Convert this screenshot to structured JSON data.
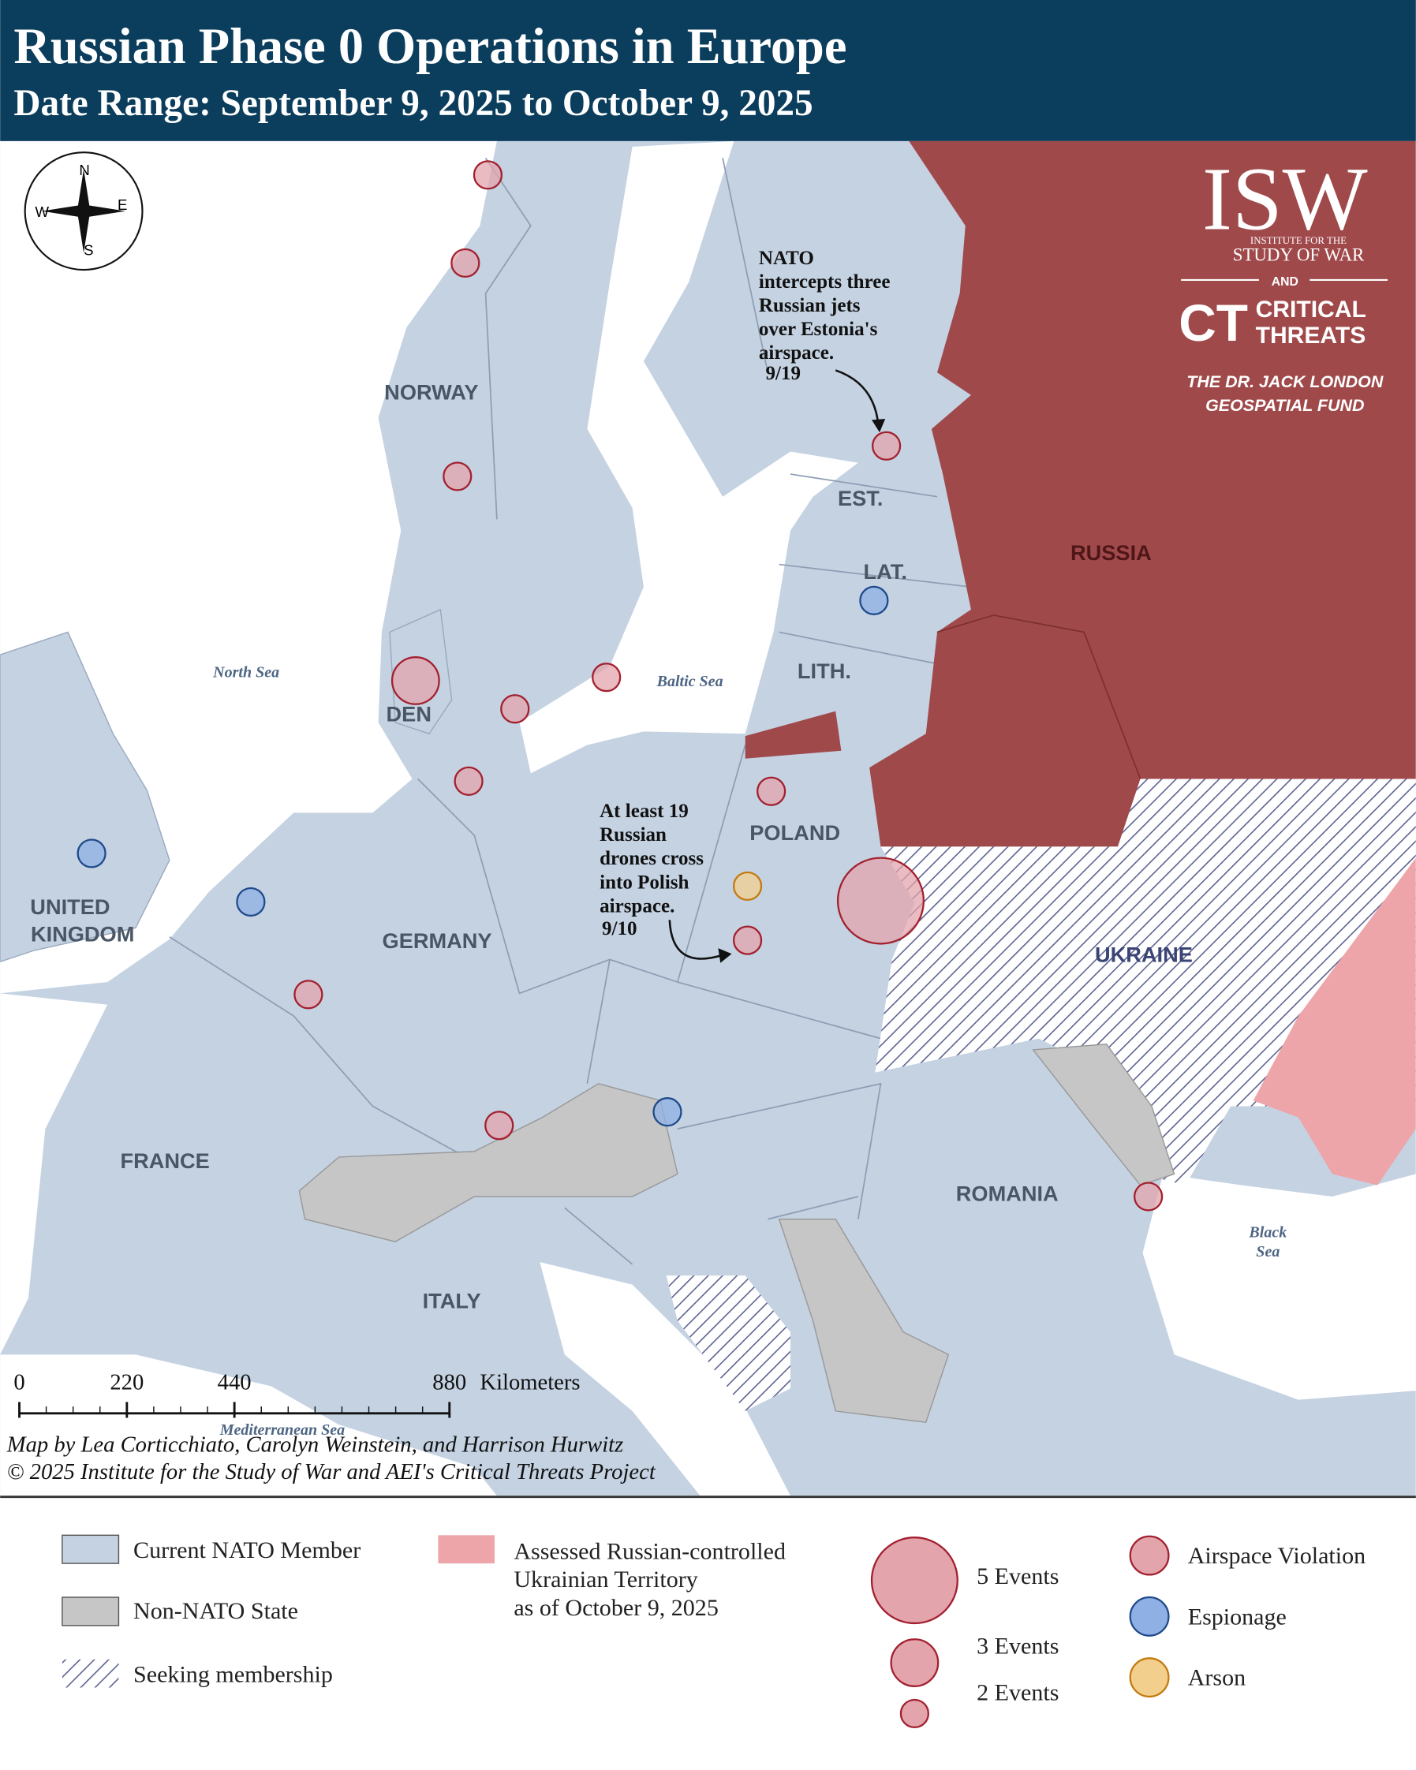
{
  "header": {
    "title": "Russian Phase 0 Operations in Europe",
    "subtitle": "Date Range: September 9, 2025 to October 9, 2025"
  },
  "compass": {
    "n": "N",
    "s": "S",
    "e": "E",
    "w": "W"
  },
  "logo": {
    "isw": "ISW",
    "isw_line1": "INSTITUTE FOR THE",
    "isw_line2": "STUDY OF WAR",
    "and": "AND",
    "ct": "CT",
    "ct_line1": "CRITICAL",
    "ct_line2": "THREATS",
    "fund_line1": "THE DR. JACK LONDON",
    "fund_line2": "GEOSPATIAL FUND"
  },
  "labels": {
    "norway": "NORWAY",
    "estonia": "EST.",
    "latvia": "LAT.",
    "lithuania": "LITH.",
    "russia": "RUSSIA",
    "denmark": "DEN",
    "poland": "POLAND",
    "uk": [
      "UNITED",
      "KINGDOM"
    ],
    "germany": "GERMANY",
    "ukraine": "UKRAINE",
    "france": "FRANCE",
    "romania": "ROMANIA",
    "italy": "ITALY"
  },
  "seas": {
    "north": "North Sea",
    "baltic": "Baltic Sea",
    "black": [
      "Black",
      "Sea"
    ],
    "mediterranean": "Mediterranean Sea"
  },
  "annotations": [
    {
      "lines": [
        "NATO",
        "intercepts three",
        "Russian jets",
        "over Estonia's",
        "airspace."
      ],
      "date": "9/19"
    },
    {
      "lines": [
        "At least 19",
        "Russian",
        "drones cross",
        "into Polish",
        "airspace."
      ],
      "date": "9/10"
    }
  ],
  "scale": {
    "ticks": [
      0,
      220,
      440,
      880
    ],
    "unit": "Kilometers"
  },
  "credits": [
    "Map by Lea Corticchiato, Carolyn Weinstein, and Harrison Hurwitz",
    "© 2025 Institute for the Study of War and AEI's Critical Threats Project"
  ],
  "events": [
    {
      "type": "Airspace Violation",
      "count": 2
    },
    {
      "type": "Airspace Violation",
      "count": 2
    },
    {
      "type": "Airspace Violation",
      "count": 2
    },
    {
      "type": "Airspace Violation",
      "count": 3
    },
    {
      "type": "Airspace Violation",
      "count": 2
    },
    {
      "type": "Airspace Violation",
      "count": 2
    },
    {
      "type": "Airspace Violation",
      "count": 2
    },
    {
      "type": "Airspace Violation",
      "count": 2
    },
    {
      "type": "Espionage",
      "count": 2
    },
    {
      "type": "Airspace Violation",
      "count": 2
    },
    {
      "type": "Arson",
      "count": 2
    },
    {
      "type": "Airspace Violation",
      "count": 2
    },
    {
      "type": "Airspace Violation",
      "count": 5
    },
    {
      "type": "Espionage",
      "count": 2
    },
    {
      "type": "Espionage",
      "count": 2
    },
    {
      "type": "Airspace Violation",
      "count": 2
    },
    {
      "type": "Airspace Violation",
      "count": 2
    },
    {
      "type": "Espionage",
      "count": 2
    },
    {
      "type": "Airspace Violation",
      "count": 2
    }
  ],
  "legend": {
    "areas": [
      "Current NATO Member",
      "Non-NATO State",
      "Seeking membership"
    ],
    "occupied": [
      "Assessed Russian-controlled",
      "Ukrainian Territory",
      "as of October 9, 2025"
    ],
    "sizes": [
      {
        "value": 5,
        "label": "5 Events"
      },
      {
        "value": 3,
        "label": "3 Events"
      },
      {
        "value": 2,
        "label": "2 Events"
      }
    ],
    "types": [
      {
        "label": "Airspace Violation",
        "fill": "#e3a4ac",
        "stroke": "#a3202f"
      },
      {
        "label": "Espionage",
        "fill": "#8fb0e4",
        "stroke": "#1f4a8a"
      },
      {
        "label": "Arson",
        "fill": "#f3cf8e",
        "stroke": "#c47a10"
      }
    ]
  }
}
